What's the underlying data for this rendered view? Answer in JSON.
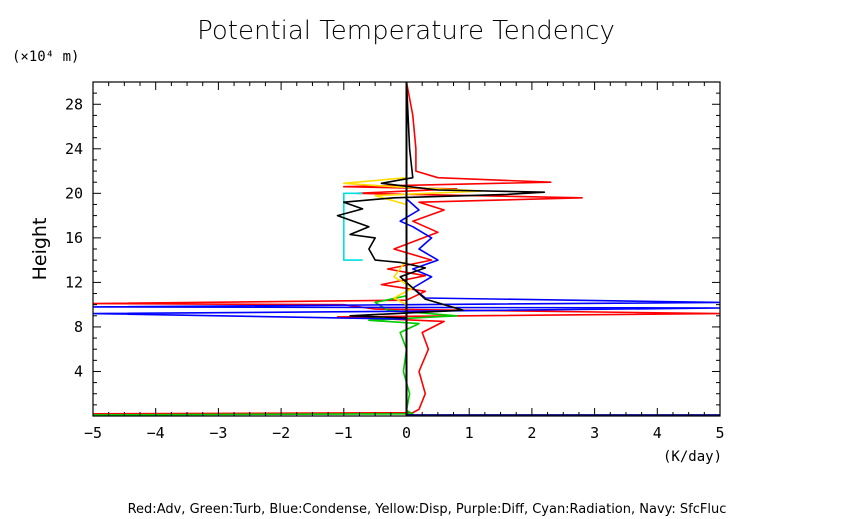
{
  "chart_data": {
    "type": "line",
    "title": "Potential Temperature Tendency",
    "ylabel": "Height",
    "y_unit": "(×10⁴ m)",
    "x_unit": "(K/day)",
    "xlim": [
      -5,
      5
    ],
    "ylim": [
      0,
      30
    ],
    "x_ticks": [
      -5,
      -4,
      -3,
      -2,
      -1,
      0,
      1,
      2,
      3,
      4,
      5
    ],
    "y_ticks": [
      4,
      8,
      12,
      16,
      20,
      24,
      28
    ],
    "grid": false,
    "legend_text": "Red:Adv, Green:Turb, Blue:Condense, Yellow:Disp, Purple:Diff, Cyan:Radiation, Navy: SfcFluc",
    "series": [
      {
        "name": "Adv",
        "color": "#ff0000",
        "points": [
          [
            -5,
            0.2
          ],
          [
            0.1,
            0.3
          ],
          [
            0.2,
            0.6
          ],
          [
            0.3,
            2
          ],
          [
            0.2,
            4
          ],
          [
            0.35,
            6
          ],
          [
            0.25,
            7.5
          ],
          [
            0.6,
            8.5
          ],
          [
            -1.1,
            8.9
          ],
          [
            5,
            9.2
          ],
          [
            -0.5,
            9.6
          ],
          [
            -1.0,
            10
          ],
          [
            -5,
            10.1
          ],
          [
            0,
            10.4
          ],
          [
            0.3,
            11.2
          ],
          [
            -0.4,
            11.8
          ],
          [
            0.3,
            12.6
          ],
          [
            -0.3,
            13.2
          ],
          [
            0.4,
            14
          ],
          [
            -0.2,
            15
          ],
          [
            0.5,
            16.5
          ],
          [
            0.1,
            17.5
          ],
          [
            0.6,
            18.5
          ],
          [
            0.2,
            19.2
          ],
          [
            2.8,
            19.6
          ],
          [
            -0.8,
            20
          ],
          [
            0.8,
            20.4
          ],
          [
            -1.0,
            20.6
          ],
          [
            2.3,
            21.0
          ],
          [
            0.5,
            21.4
          ],
          [
            0.15,
            22
          ],
          [
            0.15,
            24
          ],
          [
            0.1,
            27
          ],
          [
            0.0,
            30
          ]
        ]
      },
      {
        "name": "Turb",
        "color": "#00cc00",
        "points": [
          [
            -5,
            0.1
          ],
          [
            0.1,
            0.2
          ],
          [
            0.0,
            0.5
          ],
          [
            0.05,
            2
          ],
          [
            -0.05,
            4
          ],
          [
            0.0,
            6
          ],
          [
            -0.1,
            7.5
          ],
          [
            0.2,
            8.3
          ],
          [
            -0.6,
            8.6
          ],
          [
            0.8,
            9.0
          ],
          [
            -0.3,
            9.5
          ],
          [
            -0.5,
            10.2
          ],
          [
            0.0,
            10.8
          ],
          [
            0.0,
            30
          ]
        ]
      },
      {
        "name": "Condense",
        "color": "#0000ff",
        "points": [
          [
            0,
            0.2
          ],
          [
            0,
            8.7
          ],
          [
            -5,
            9.2
          ],
          [
            0,
            9.4
          ],
          [
            5,
            9.7
          ],
          [
            -5,
            9.8
          ],
          [
            0,
            10.0
          ],
          [
            5,
            10.2
          ],
          [
            0.3,
            10.6
          ],
          [
            0.1,
            11.5
          ],
          [
            0.4,
            12.5
          ],
          [
            0.1,
            13.2
          ],
          [
            0.5,
            14
          ],
          [
            0.2,
            15
          ],
          [
            0.4,
            16
          ],
          [
            0.1,
            17
          ],
          [
            -0.1,
            17.5
          ],
          [
            0.2,
            18.5
          ],
          [
            0.0,
            19.5
          ],
          [
            0.0,
            30
          ]
        ]
      },
      {
        "name": "Disp",
        "color": "#ffdd00",
        "points": [
          [
            0,
            0.2
          ],
          [
            0,
            10
          ],
          [
            -0.2,
            10.6
          ],
          [
            0.1,
            11.5
          ],
          [
            -0.2,
            12.5
          ],
          [
            0.0,
            14
          ],
          [
            0.0,
            19
          ],
          [
            -0.5,
            19.8
          ],
          [
            1.2,
            20.2
          ],
          [
            -0.2,
            20.6
          ],
          [
            -1.0,
            20.9
          ],
          [
            0.0,
            21.4
          ],
          [
            0.0,
            30
          ]
        ]
      },
      {
        "name": "Diff",
        "color": "#800080",
        "points": []
      },
      {
        "name": "Radiation",
        "color": "#00e0e0",
        "points": [
          [
            -0.7,
            14
          ],
          [
            -1.0,
            14
          ],
          [
            -1.0,
            20
          ],
          [
            -0.7,
            20
          ]
        ]
      },
      {
        "name": "SfcFluc",
        "color": "#000080",
        "points": [
          [
            0,
            0.1
          ],
          [
            5,
            0.1
          ]
        ]
      },
      {
        "name": "",
        "color": "#000000",
        "points": [
          [
            0,
            0.2
          ],
          [
            0,
            8.8
          ],
          [
            -0.9,
            9.0
          ],
          [
            0.9,
            9.5
          ],
          [
            0.3,
            10.5
          ],
          [
            0.1,
            11.5
          ],
          [
            -0.1,
            12.5
          ],
          [
            0.3,
            13.3
          ],
          [
            -0.1,
            13.8
          ],
          [
            -0.5,
            14
          ],
          [
            -0.6,
            15
          ],
          [
            -0.5,
            16
          ],
          [
            -0.9,
            16.3
          ],
          [
            -0.6,
            17
          ],
          [
            -1.1,
            18
          ],
          [
            -0.7,
            18.6
          ],
          [
            -1.0,
            19.2
          ],
          [
            -0.2,
            19.6
          ],
          [
            1.6,
            19.9
          ],
          [
            2.2,
            20.1
          ],
          [
            0.5,
            20.3
          ],
          [
            -0.4,
            20.9
          ],
          [
            0.1,
            21.4
          ],
          [
            0.05,
            24
          ],
          [
            0.0,
            30
          ]
        ]
      }
    ]
  }
}
